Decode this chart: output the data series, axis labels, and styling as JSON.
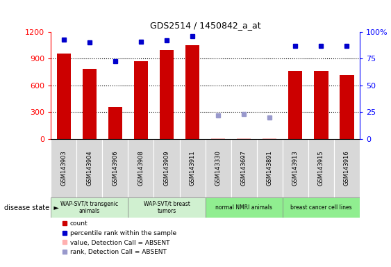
{
  "title": "GDS2514 / 1450842_a_at",
  "samples": [
    "GSM143903",
    "GSM143904",
    "GSM143906",
    "GSM143908",
    "GSM143909",
    "GSM143911",
    "GSM143330",
    "GSM143697",
    "GSM143891",
    "GSM143913",
    "GSM143915",
    "GSM143916"
  ],
  "counts": [
    960,
    790,
    355,
    870,
    1000,
    1050,
    3,
    8,
    3,
    760,
    760,
    720
  ],
  "counts_absent": [
    false,
    false,
    false,
    false,
    false,
    false,
    true,
    true,
    true,
    false,
    false,
    false
  ],
  "percentile_ranks": [
    93,
    90,
    73,
    91,
    92,
    96,
    null,
    null,
    null,
    87,
    87,
    87
  ],
  "percentile_absent_rank": [
    null,
    null,
    null,
    null,
    null,
    null,
    22,
    23,
    20,
    null,
    null,
    null
  ],
  "groups": [
    {
      "label": "WAP-SVT/t transgenic\nanimals",
      "start": 0,
      "end": 3,
      "color": "#d0f0d0"
    },
    {
      "label": "WAP-SVT/t breast\ntumors",
      "start": 3,
      "end": 6,
      "color": "#d0f0d0"
    },
    {
      "label": "normal NMRI animals",
      "start": 6,
      "end": 9,
      "color": "#90ee90"
    },
    {
      "label": "breast cancer cell lines",
      "start": 9,
      "end": 12,
      "color": "#90ee90"
    }
  ],
  "ylim_left": [
    0,
    1200
  ],
  "ylim_right": [
    0,
    100
  ],
  "yticks_left": [
    0,
    300,
    600,
    900,
    1200
  ],
  "yticks_right": [
    0,
    25,
    50,
    75,
    100
  ],
  "ytick_right_labels": [
    "0",
    "25",
    "50",
    "75",
    "100%"
  ],
  "bar_color": "#cc0000",
  "absent_bar_color": "#ffb0b0",
  "rank_color": "#0000cc",
  "absent_rank_color": "#9999cc",
  "grid_color": "#000000",
  "bg_color": "#ffffff",
  "sample_box_color": "#d8d8d8",
  "bar_width": 0.55
}
